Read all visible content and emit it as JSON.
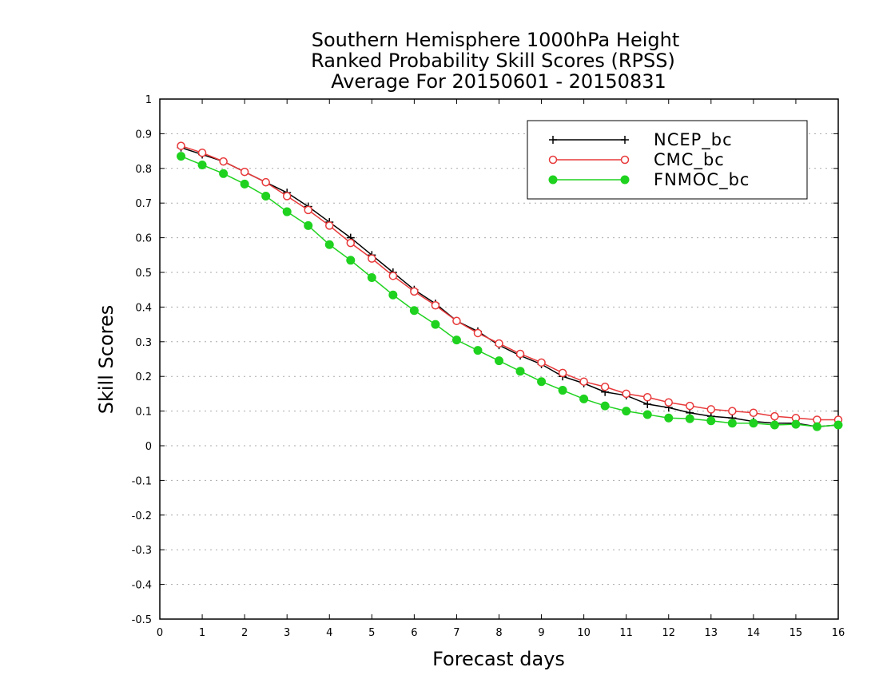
{
  "chart_data": {
    "type": "line",
    "title_lines": [
      "Southern Hemisphere 1000hPa Height",
      "Ranked Probability Skill Scores (RPSS)",
      "Average For 20150601 - 20150831"
    ],
    "xlabel": "Forecast days",
    "ylabel": "Skill Scores",
    "xlim": [
      0,
      16
    ],
    "ylim": [
      -0.5,
      1
    ],
    "x_ticks": [
      "0",
      "1",
      "2",
      "3",
      "4",
      "5",
      "6",
      "7",
      "8",
      "9",
      "10",
      "11",
      "12",
      "13",
      "14",
      "15",
      "16"
    ],
    "y_ticks": [
      "-0.5",
      "-0.4",
      "-0.3",
      "-0.2",
      "-0.1",
      "0",
      "0.1",
      "0.2",
      "0.3",
      "0.4",
      "0.5",
      "0.6",
      "0.7",
      "0.8",
      "0.9",
      "1"
    ],
    "grid": "horizontal dotted",
    "legend_position": "top-right",
    "x": [
      0.5,
      1,
      1.5,
      2,
      2.5,
      3,
      3.5,
      4,
      4.5,
      5,
      5.5,
      6,
      6.5,
      7,
      7.5,
      8,
      8.5,
      9,
      9.5,
      10,
      10.5,
      11,
      11.5,
      12,
      12.5,
      13,
      13.5,
      14,
      14.5,
      15,
      15.5,
      16
    ],
    "series": [
      {
        "name": "NCEP_bc",
        "color": "#000000",
        "marker": "plus",
        "values": [
          0.86,
          0.84,
          0.82,
          0.79,
          0.76,
          0.73,
          0.69,
          0.645,
          0.6,
          0.55,
          0.5,
          0.45,
          0.41,
          0.36,
          0.33,
          0.29,
          0.26,
          0.235,
          0.2,
          0.18,
          0.155,
          0.145,
          0.12,
          0.11,
          0.095,
          0.085,
          0.08,
          0.07,
          0.065,
          0.065,
          0.055,
          0.06
        ]
      },
      {
        "name": "CMC_bc",
        "color": "#e8393a",
        "marker": "open-circle",
        "values": [
          0.865,
          0.845,
          0.82,
          0.79,
          0.76,
          0.72,
          0.68,
          0.635,
          0.585,
          0.54,
          0.49,
          0.445,
          0.405,
          0.36,
          0.325,
          0.295,
          0.265,
          0.24,
          0.21,
          0.185,
          0.17,
          0.15,
          0.14,
          0.125,
          0.115,
          0.105,
          0.1,
          0.095,
          0.085,
          0.08,
          0.075,
          0.075
        ]
      },
      {
        "name": "FNMOC_bc",
        "color": "#1fd21f",
        "marker": "filled-circle",
        "values": [
          0.835,
          0.81,
          0.785,
          0.755,
          0.72,
          0.675,
          0.635,
          0.58,
          0.535,
          0.485,
          0.435,
          0.39,
          0.35,
          0.305,
          0.275,
          0.245,
          0.215,
          0.185,
          0.16,
          0.135,
          0.115,
          0.1,
          0.09,
          0.08,
          0.078,
          0.072,
          0.065,
          0.065,
          0.06,
          0.062,
          0.055,
          0.06
        ]
      }
    ]
  }
}
